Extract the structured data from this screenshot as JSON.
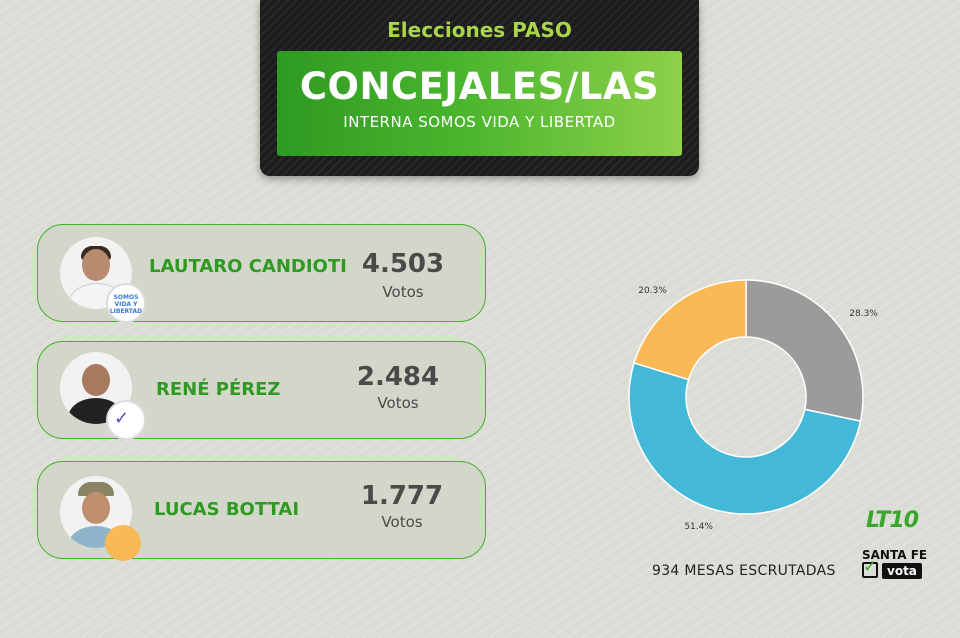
{
  "header": {
    "kicker": "Elecciones PASO",
    "title": "CONCEJALES/LAS",
    "subtitle": "INTERNA SOMOS VIDA Y LIBERTAD"
  },
  "candidates": [
    {
      "name": "LAUTARO CANDIOTI",
      "votes": "4.503",
      "votes_label": "Votos",
      "badge_text": "SOMOS VIDA Y LIBERTAD"
    },
    {
      "name": "RENÉ PÉREZ",
      "votes": "2.484",
      "votes_label": "Votos"
    },
    {
      "name": "LUCAS BOTTAI",
      "votes": "1.777",
      "votes_label": "Votos"
    }
  ],
  "chart_data": {
    "type": "pie",
    "donut": true,
    "slices": [
      {
        "value": 28.3,
        "label": "28.3%",
        "color": "#9b9b9b"
      },
      {
        "value": 51.4,
        "label": "51.4%",
        "color": "#44b8d8"
      },
      {
        "value": 20.3,
        "label": "20.3%",
        "color": "#fbb955"
      }
    ],
    "start_angle_deg": 0,
    "clockwise": true
  },
  "footer": {
    "mesas": "934  MESAS ESCRUTADAS",
    "brand": "LT10",
    "santa_fe": "SANTA FE",
    "vota": "vota"
  },
  "colors": {
    "accent_green": "#43b02a",
    "panel_dark": "#1c1c1c",
    "text_gray": "#4a4a4a"
  }
}
